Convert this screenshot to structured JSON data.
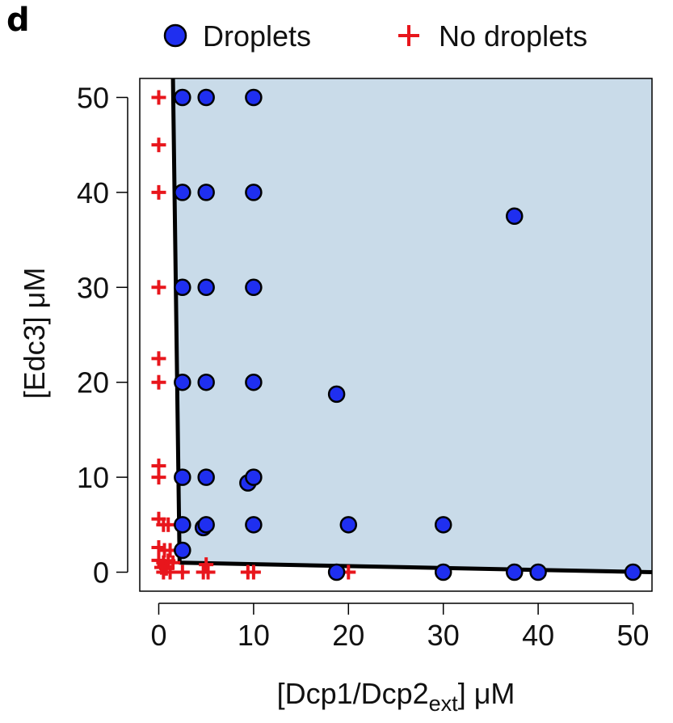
{
  "panel_label": "d",
  "chart_data": {
    "type": "scatter",
    "title": "",
    "xlabel": "[Dcp1/Dcp2",
    "xlabel_sub": "ext",
    "xlabel_unit": "] μM",
    "ylabel": "[Edc3] μM",
    "xlim": [
      -2,
      52
    ],
    "ylim": [
      -2,
      52
    ],
    "x_ticks": [
      0,
      10,
      20,
      30,
      40,
      50
    ],
    "y_ticks": [
      0,
      10,
      20,
      30,
      40,
      50
    ],
    "grid": false,
    "legend_position": "top",
    "colors": {
      "droplets": "#1f2ff0",
      "no_droplets": "#e8161c",
      "region_fill": "#c9dbe9",
      "boundary": "#000000"
    },
    "series": [
      {
        "name": "Droplets",
        "marker": "circle",
        "points": [
          [
            2.5,
            50
          ],
          [
            5,
            50
          ],
          [
            10,
            50
          ],
          [
            2.5,
            40
          ],
          [
            5,
            40
          ],
          [
            10,
            40
          ],
          [
            37.5,
            37.5
          ],
          [
            2.5,
            30
          ],
          [
            5,
            30
          ],
          [
            10,
            30
          ],
          [
            2.5,
            20
          ],
          [
            5,
            20
          ],
          [
            10,
            20
          ],
          [
            18.75,
            18.75
          ],
          [
            2.5,
            10
          ],
          [
            5,
            10
          ],
          [
            9.4,
            9.4
          ],
          [
            10,
            10
          ],
          [
            2.5,
            5
          ],
          [
            4.7,
            4.7
          ],
          [
            5,
            5
          ],
          [
            10,
            5
          ],
          [
            20,
            5
          ],
          [
            30,
            5
          ],
          [
            2.5,
            2.3
          ],
          [
            18.75,
            0
          ],
          [
            30,
            0
          ],
          [
            37.5,
            0
          ],
          [
            40,
            0
          ],
          [
            50,
            0
          ]
        ]
      },
      {
        "name": "No droplets",
        "marker": "plus",
        "points": [
          [
            0,
            50
          ],
          [
            0,
            45
          ],
          [
            0,
            40
          ],
          [
            0,
            30
          ],
          [
            0,
            22.5
          ],
          [
            0,
            20
          ],
          [
            0,
            11.2
          ],
          [
            0,
            10
          ],
          [
            0,
            5.6
          ],
          [
            0.5,
            5
          ],
          [
            1,
            5
          ],
          [
            0,
            2.6
          ],
          [
            0.6,
            2.3
          ],
          [
            1.2,
            2.3
          ],
          [
            0,
            1.25
          ],
          [
            0.5,
            1
          ],
          [
            1,
            1.2
          ],
          [
            1.5,
            1
          ],
          [
            0.3,
            0.5
          ],
          [
            0.8,
            0.4
          ],
          [
            1.2,
            0
          ],
          [
            0.5,
            0
          ],
          [
            2.5,
            0
          ],
          [
            4.7,
            0
          ],
          [
            5,
            0.8
          ],
          [
            5.2,
            0
          ],
          [
            9.4,
            0
          ],
          [
            10,
            0
          ],
          [
            20,
            0
          ]
        ]
      }
    ],
    "boundary_line": [
      [
        1.5,
        52
      ],
      [
        2.2,
        1.0
      ],
      [
        52,
        0
      ]
    ]
  }
}
